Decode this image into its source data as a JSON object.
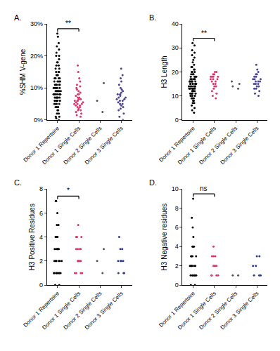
{
  "chart_data": [
    {
      "type": "strip",
      "title": "A.",
      "y_label": "%SHM V-gene",
      "categories": [
        "Donor 1 Repertoire",
        "Donor 1 Single Cells",
        "Donor 2 Single Cells",
        "Donor 3 Single Cells"
      ],
      "colors": [
        "#000000",
        "#d9366f",
        "#555555",
        "#4a4590"
      ],
      "values": [
        [
          27,
          26,
          24,
          23,
          22,
          21,
          20,
          20,
          19,
          18,
          18,
          17,
          17,
          16,
          16,
          15,
          15,
          15,
          14,
          14,
          14,
          13,
          13,
          13,
          13,
          12,
          12,
          12,
          12,
          11,
          11,
          11,
          11,
          11,
          10,
          10,
          10,
          10,
          10,
          10,
          9,
          9,
          9,
          9,
          9,
          9,
          8,
          8,
          8,
          8,
          8,
          8,
          8,
          7,
          7,
          7,
          7,
          7,
          7,
          6,
          6,
          6,
          6,
          6,
          5,
          5,
          5,
          5,
          4,
          4,
          4,
          3,
          3,
          2,
          2,
          1,
          1,
          0.5,
          0
        ],
        [
          17,
          15,
          13,
          12,
          11,
          10.5,
          10,
          9.5,
          9,
          8.5,
          8,
          8,
          7.5,
          7,
          7,
          6.5,
          6.5,
          6,
          6,
          6,
          5.5,
          5.5,
          5,
          5,
          5,
          4.5,
          4.5,
          4,
          4,
          3.5,
          3,
          3,
          2.5,
          2,
          1.5,
          1
        ],
        [
          11.5,
          6,
          2.5
        ],
        [
          16,
          14,
          13,
          12,
          11,
          10,
          9.5,
          9,
          8.5,
          8,
          8,
          7.5,
          7,
          7,
          6.5,
          6.5,
          6,
          6,
          5.5,
          5,
          5,
          4.5,
          4,
          3.5,
          3,
          2,
          1,
          0
        ]
      ],
      "ylim": [
        0,
        30
      ],
      "yticks": [
        {
          "value": 0,
          "label": "0%"
        },
        {
          "value": 10,
          "label": "10%"
        },
        {
          "value": 20,
          "label": "20%"
        },
        {
          "value": 30,
          "label": "30%"
        }
      ],
      "significance": {
        "text": "**",
        "between": [
          0,
          1
        ]
      }
    },
    {
      "type": "strip",
      "title": "B.",
      "y_label": "H3 Length",
      "categories": [
        "Donor 1 Repertoire",
        "Donor 1 Single Cells",
        "Donor 2 Single Cells",
        "Donor 3 Single Cells"
      ],
      "colors": [
        "#000000",
        "#d9366f",
        "#555555",
        "#4a4590"
      ],
      "values": [
        [
          32,
          31,
          29,
          28,
          27,
          26,
          25,
          24,
          23,
          22,
          22,
          21,
          21,
          20,
          20,
          20,
          19,
          19,
          19,
          18,
          18,
          18,
          18,
          17,
          17,
          17,
          17,
          17,
          16,
          16,
          16,
          16,
          16,
          16,
          15,
          15,
          15,
          15,
          15,
          15,
          15,
          14,
          14,
          14,
          14,
          14,
          14,
          13,
          13,
          13,
          13,
          13,
          13,
          12,
          12,
          12,
          12,
          12,
          11,
          11,
          11,
          11,
          10,
          10,
          10,
          9,
          9,
          9,
          8,
          8,
          7,
          7,
          6,
          5,
          4,
          3
        ],
        [
          20,
          20,
          19,
          19,
          18,
          18,
          18,
          18,
          17,
          17,
          17,
          16,
          16,
          15,
          15,
          14,
          14,
          13,
          12,
          11,
          10,
          9
        ],
        [
          16,
          15,
          14,
          13
        ],
        [
          23,
          21,
          20,
          19,
          19,
          18,
          18,
          17,
          17,
          17,
          16,
          16,
          16,
          15,
          15,
          15,
          14,
          14,
          13,
          13,
          12,
          11,
          10
        ]
      ],
      "ylim": [
        0,
        40
      ],
      "yticks": [
        0,
        10,
        20,
        30,
        40
      ],
      "significance": {
        "text": "**",
        "between": [
          0,
          1
        ]
      }
    },
    {
      "type": "strip",
      "title": "C.",
      "y_label": "H3 Positive Residues",
      "categories": [
        "Donor 1 Repertoire",
        "Donor 1 Single Cells",
        "Donor 2 Single Cells",
        "Donor 3 Single Cells"
      ],
      "colors": [
        "#000000",
        "#d9366f",
        "#555555",
        "#2e3a8c"
      ],
      "values": [
        [
          7,
          7,
          6,
          5,
          5,
          4,
          4,
          4,
          3,
          3,
          3,
          3,
          3,
          2,
          2,
          2,
          2,
          2,
          2,
          2,
          1,
          1,
          1,
          1,
          1,
          1,
          1,
          1,
          0,
          0
        ],
        [
          5,
          4,
          4,
          4,
          3,
          3,
          3,
          3,
          2,
          2,
          2,
          2,
          2,
          1,
          1,
          1,
          1
        ],
        [
          3,
          2,
          1
        ],
        [
          4,
          3,
          3,
          2,
          2,
          2,
          2,
          1,
          1,
          1
        ]
      ],
      "ylim": [
        0,
        8
      ],
      "yticks": [
        0,
        2,
        4,
        6,
        8
      ],
      "significance": {
        "text": "*",
        "between": [
          0,
          1
        ]
      }
    },
    {
      "type": "strip",
      "title": "D.",
      "y_label": "H3 Negative residues",
      "categories": [
        "Donor 1 Repertoire",
        "Donor 1 Single Cells",
        "Donor 2 Single Cells",
        "Donor 3 Single Cells"
      ],
      "colors": [
        "#000000",
        "#d9366f",
        "#555555",
        "#2e3a8c"
      ],
      "values": [
        [
          9,
          7,
          6,
          5,
          4,
          4,
          4,
          3,
          3,
          3,
          3,
          2,
          2,
          2,
          2,
          2,
          2,
          1,
          1,
          1,
          1,
          1,
          1,
          0,
          0
        ],
        [
          4,
          3,
          3,
          3,
          2,
          2,
          2,
          2,
          1,
          1,
          1,
          1
        ],
        [
          1,
          1
        ],
        [
          3,
          3,
          2,
          2,
          1,
          1,
          1
        ]
      ],
      "ylim": [
        0,
        10
      ],
      "yticks": [
        0,
        2,
        4,
        6,
        8,
        10
      ],
      "significance": {
        "text": "ns",
        "between": [
          0,
          1
        ]
      }
    }
  ]
}
